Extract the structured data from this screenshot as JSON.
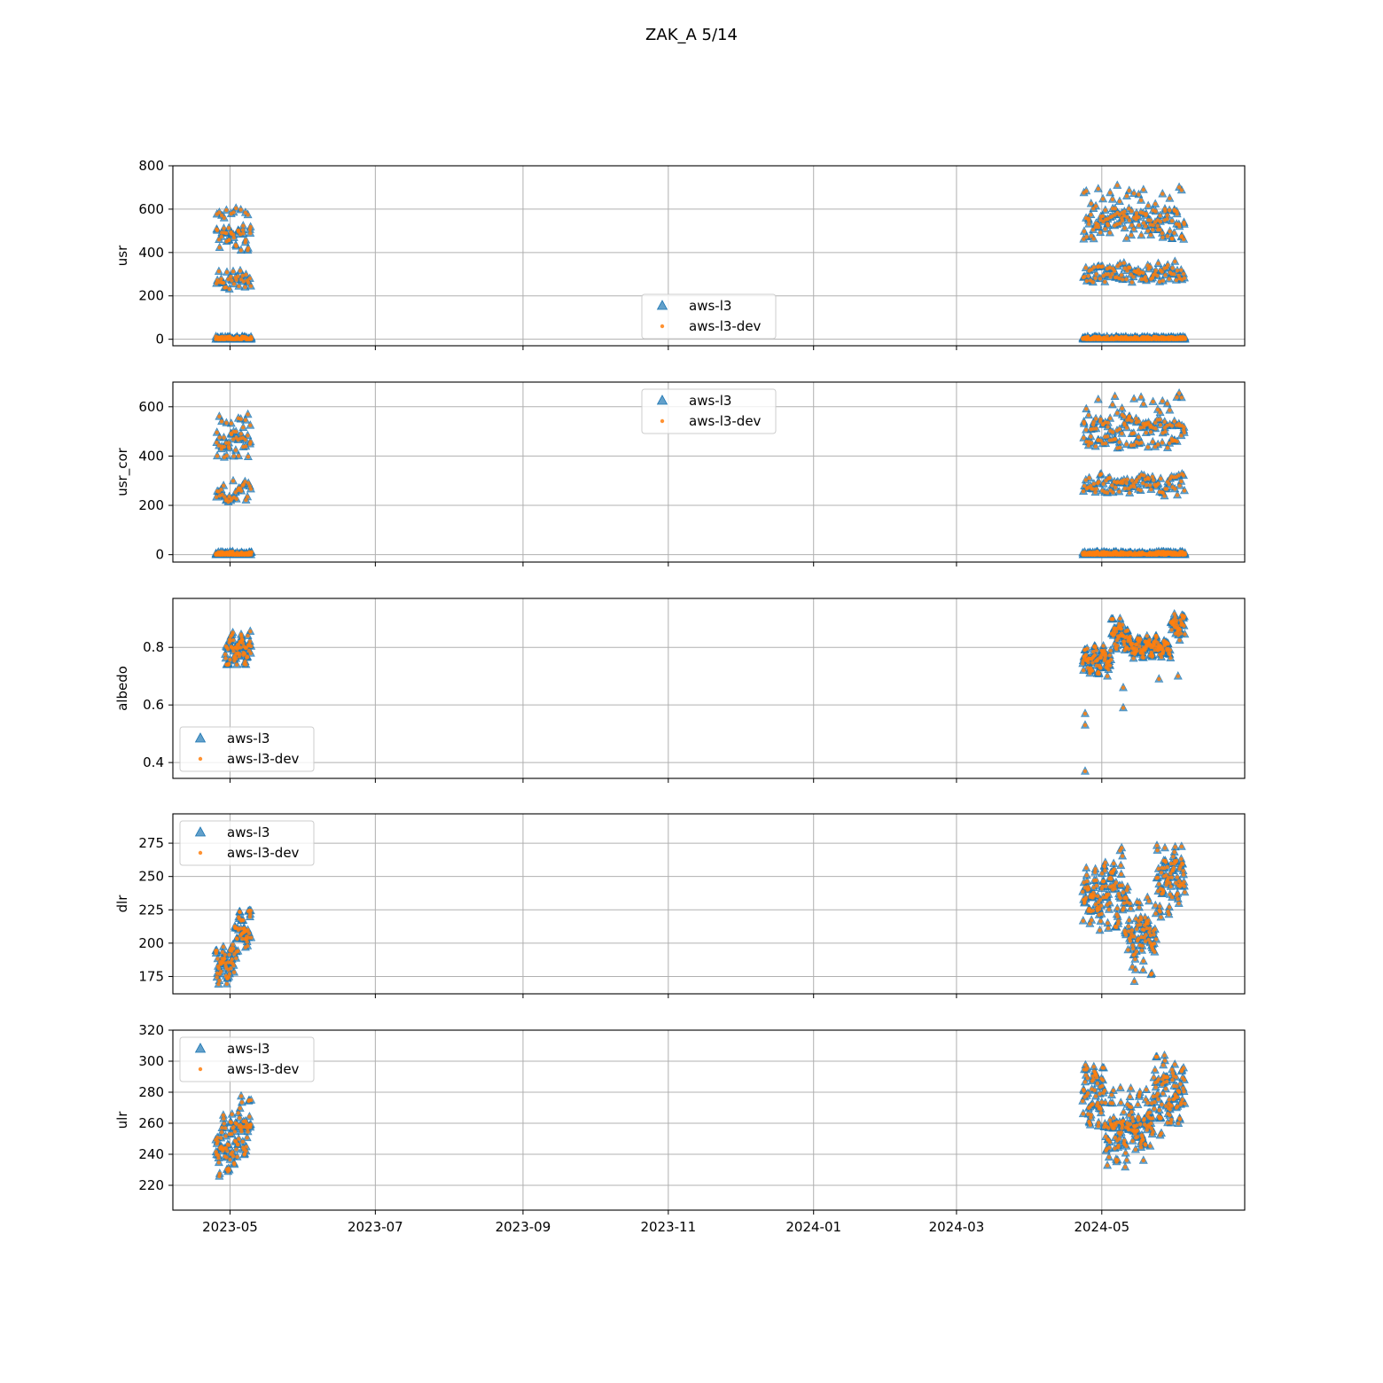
{
  "figure": {
    "title": "ZAK_A 5/14"
  },
  "colors": {
    "aws_l3": "#1f77b4",
    "aws_l3_dev": "#ff7f0e",
    "grid": "#b0b0b0",
    "axes": "#000000"
  },
  "chart_data": [
    {
      "type": "scatter",
      "ylabel": "usr",
      "yticks": [
        0,
        200,
        400,
        600,
        800
      ],
      "ylim": [
        -30,
        800
      ],
      "xticks": [
        "2023-05",
        "2023-07",
        "2023-09",
        "2023-11",
        "2024-01",
        "2024-03",
        "2024-05"
      ],
      "xlim": [
        "2023-04-07",
        "2024-06-30"
      ],
      "grid": true,
      "legend": "lower center",
      "segments": [
        {
          "start": "2023-04-25",
          "end": "2023-05-10",
          "min": 0,
          "max": 640,
          "base": 20,
          "amp": 600,
          "nightMin": 0,
          "daily": true
        },
        {
          "start": "2024-04-23",
          "end": "2024-06-05",
          "min": 0,
          "max": 760,
          "base": 40,
          "amp": 660,
          "nightMin": 0,
          "daily": true
        }
      ],
      "series": [
        {
          "name": "aws-l3",
          "marker": "triangle"
        },
        {
          "name": "aws-l3-dev",
          "marker": "dot"
        }
      ]
    },
    {
      "type": "scatter",
      "ylabel": "usr_cor",
      "yticks": [
        0,
        200,
        400,
        600
      ],
      "ylim": [
        -30,
        700
      ],
      "xticks": [
        "2023-05",
        "2023-07",
        "2023-09",
        "2023-11",
        "2024-01",
        "2024-03",
        "2024-05"
      ],
      "xlim": [
        "2023-04-07",
        "2024-06-30"
      ],
      "grid": true,
      "legend": "upper center",
      "segments": [
        {
          "start": "2023-04-25",
          "end": "2023-05-10",
          "min": 0,
          "max": 620,
          "base": 0,
          "amp": 590,
          "nightMin": 0,
          "daily": true
        },
        {
          "start": "2024-04-23",
          "end": "2024-06-05",
          "min": 0,
          "max": 665,
          "base": 40,
          "amp": 610,
          "nightMin": 0,
          "daily": true
        }
      ],
      "series": [
        {
          "name": "aws-l3",
          "marker": "triangle"
        },
        {
          "name": "aws-l3-dev",
          "marker": "dot"
        }
      ]
    },
    {
      "type": "scatter",
      "ylabel": "albedo",
      "yticks": [
        0.4,
        0.6,
        0.8
      ],
      "ylim": [
        0.345,
        0.97
      ],
      "xticks": [
        "2023-05",
        "2023-07",
        "2023-09",
        "2023-11",
        "2024-01",
        "2024-03",
        "2024-05"
      ],
      "xlim": [
        "2023-04-07",
        "2024-06-30"
      ],
      "grid": true,
      "legend": "lower left",
      "segments": [
        {
          "start": "2023-04-29",
          "end": "2023-05-10",
          "min": 0.74,
          "max": 0.89,
          "base": 0.79,
          "amp": 0.05,
          "daily": false
        },
        {
          "start": "2024-04-23",
          "end": "2024-05-05",
          "min": 0.7,
          "max": 0.83,
          "base": 0.75,
          "amp": 0.04,
          "daily": false
        },
        {
          "start": "2024-05-05",
          "end": "2024-05-12",
          "min": 0.78,
          "max": 0.93,
          "base": 0.85,
          "amp": 0.05,
          "daily": false
        },
        {
          "start": "2024-05-12",
          "end": "2024-05-30",
          "min": 0.75,
          "max": 0.86,
          "base": 0.8,
          "amp": 0.03,
          "daily": false
        },
        {
          "start": "2024-05-30",
          "end": "2024-06-05",
          "min": 0.8,
          "max": 0.94,
          "base": 0.87,
          "amp": 0.04,
          "daily": false
        }
      ],
      "outliers": [
        {
          "x": "2024-04-24",
          "y": 0.37
        },
        {
          "x": "2024-04-24",
          "y": 0.53
        },
        {
          "x": "2024-04-24",
          "y": 0.57
        },
        {
          "x": "2024-05-10",
          "y": 0.59
        },
        {
          "x": "2024-05-10",
          "y": 0.66
        },
        {
          "x": "2024-05-25",
          "y": 0.69
        },
        {
          "x": "2024-06-02",
          "y": 0.7
        }
      ],
      "series": [
        {
          "name": "aws-l3",
          "marker": "triangle"
        },
        {
          "name": "aws-l3-dev",
          "marker": "dot"
        }
      ]
    },
    {
      "type": "scatter",
      "ylabel": "dlr",
      "yticks": [
        175,
        200,
        225,
        250,
        275
      ],
      "ylim": [
        162,
        297
      ],
      "xticks": [
        "2023-05",
        "2023-07",
        "2023-09",
        "2023-11",
        "2024-01",
        "2024-03",
        "2024-05"
      ],
      "xlim": [
        "2023-04-07",
        "2024-06-30"
      ],
      "grid": true,
      "legend": "upper left",
      "segments": [
        {
          "start": "2023-04-25",
          "end": "2023-05-03",
          "min": 166,
          "max": 212,
          "base": 185,
          "amp": 12,
          "daily": false
        },
        {
          "start": "2023-05-03",
          "end": "2023-05-10",
          "min": 182,
          "max": 236,
          "base": 208,
          "amp": 14,
          "daily": false
        },
        {
          "start": "2024-04-23",
          "end": "2024-05-02",
          "min": 205,
          "max": 290,
          "base": 232,
          "amp": 18,
          "daily": false
        },
        {
          "start": "2024-05-02",
          "end": "2024-05-12",
          "min": 185,
          "max": 282,
          "base": 240,
          "amp": 25,
          "daily": false
        },
        {
          "start": "2024-05-12",
          "end": "2024-05-24",
          "min": 166,
          "max": 262,
          "base": 205,
          "amp": 25,
          "daily": false
        },
        {
          "start": "2024-05-24",
          "end": "2024-06-05",
          "min": 195,
          "max": 286,
          "base": 248,
          "amp": 22,
          "daily": false
        }
      ],
      "series": [
        {
          "name": "aws-l3",
          "marker": "triangle"
        },
        {
          "name": "aws-l3-dev",
          "marker": "dot"
        }
      ]
    },
    {
      "type": "scatter",
      "ylabel": "ulr",
      "yticks": [
        220,
        240,
        260,
        280,
        300,
        320
      ],
      "ylim": [
        204,
        320
      ],
      "xticks": [
        "2023-05",
        "2023-07",
        "2023-09",
        "2023-11",
        "2024-01",
        "2024-03",
        "2024-05"
      ],
      "xlim": [
        "2023-04-07",
        "2024-06-30"
      ],
      "grid": true,
      "legend": "upper left",
      "segments": [
        {
          "start": "2023-04-25",
          "end": "2023-05-03",
          "min": 214,
          "max": 270,
          "base": 245,
          "amp": 16,
          "daily": false
        },
        {
          "start": "2023-05-03",
          "end": "2023-05-10",
          "min": 222,
          "max": 287,
          "base": 258,
          "amp": 16,
          "daily": false
        },
        {
          "start": "2024-04-23",
          "end": "2024-05-02",
          "min": 250,
          "max": 308,
          "base": 278,
          "amp": 16,
          "daily": false
        },
        {
          "start": "2024-05-02",
          "end": "2024-05-22",
          "min": 210,
          "max": 300,
          "base": 258,
          "amp": 20,
          "daily": false
        },
        {
          "start": "2024-05-22",
          "end": "2024-06-05",
          "min": 240,
          "max": 315,
          "base": 278,
          "amp": 20,
          "daily": false
        }
      ],
      "series": [
        {
          "name": "aws-l3",
          "marker": "triangle"
        },
        {
          "name": "aws-l3-dev",
          "marker": "dot"
        }
      ]
    }
  ]
}
